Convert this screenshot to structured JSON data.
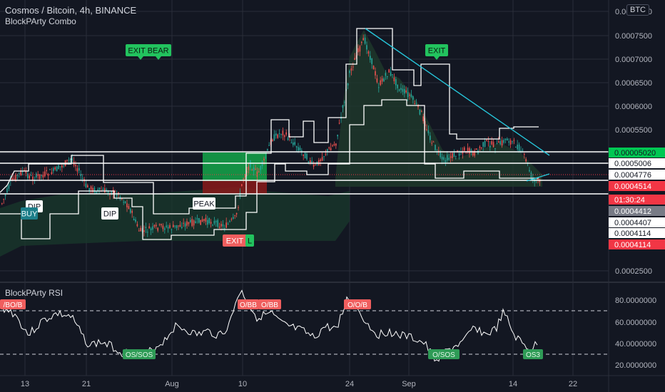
{
  "header": {
    "symbol_line": "Cosmos / Bitcoin, 4h, BINANCE",
    "indicator": "BlockPArty Combo",
    "currency": "BTC"
  },
  "rsi_panel": {
    "title": "BlockPArty RSI"
  },
  "colors": {
    "bg": "#131722",
    "up": "#26a69a",
    "down": "#ef5350",
    "green_label": "#22c35e",
    "red_label": "#ef5350",
    "trendline": "#26c6da",
    "grid": "#2a2e39"
  },
  "price_axis": {
    "ticks": [
      "0.0008000",
      "0.0007500",
      "0.0007000",
      "0.0006500",
      "0.0006000",
      "0.0005500",
      "0.0005000",
      "0.0002500"
    ],
    "labels": [
      {
        "text": "0.00005020",
        "style": "green"
      },
      {
        "text": "0.0005006",
        "style": "white"
      },
      {
        "text": "0.0004776",
        "style": "white"
      },
      {
        "text": "0.0004514",
        "style": "red"
      },
      {
        "text": "01:30:24",
        "style": "red"
      },
      {
        "text": "0.0004412",
        "style": "gray"
      },
      {
        "text": "0.0004407",
        "style": "white"
      },
      {
        "text": "0.0004114",
        "style": "white"
      },
      {
        "text": "0.0004114",
        "style": "red"
      }
    ]
  },
  "rsi_axis": {
    "ticks": [
      "80.0000000",
      "60.0000000",
      "40.0000000",
      "20.0000000"
    ]
  },
  "time_axis": {
    "labels": [
      "13",
      "21",
      "Aug",
      "10",
      "24",
      "Sep",
      "14",
      "22"
    ]
  },
  "signals": [
    {
      "text": "EXIT  BEAR",
      "style": "green"
    },
    {
      "text": "EXIT",
      "style": "green"
    },
    {
      "text": "DIP",
      "style": "white"
    },
    {
      "text": "DIP",
      "style": "white"
    },
    {
      "text": "BUY",
      "style": "teal"
    },
    {
      "text": "PEAK",
      "style": "white"
    },
    {
      "text": "EXIT",
      "style": "red"
    },
    {
      "text": "L",
      "style": "green"
    }
  ],
  "rsi_labels": [
    {
      "text": "/BO/B",
      "style": "red"
    },
    {
      "text": "O/BB",
      "style": "red"
    },
    {
      "text": "O/BB",
      "style": "red"
    },
    {
      "text": "O/O/B",
      "style": "red"
    },
    {
      "text": "OS/SOS",
      "style": "green"
    },
    {
      "text": "O/SOS",
      "style": "green"
    },
    {
      "text": "OS3",
      "style": "green"
    }
  ]
}
